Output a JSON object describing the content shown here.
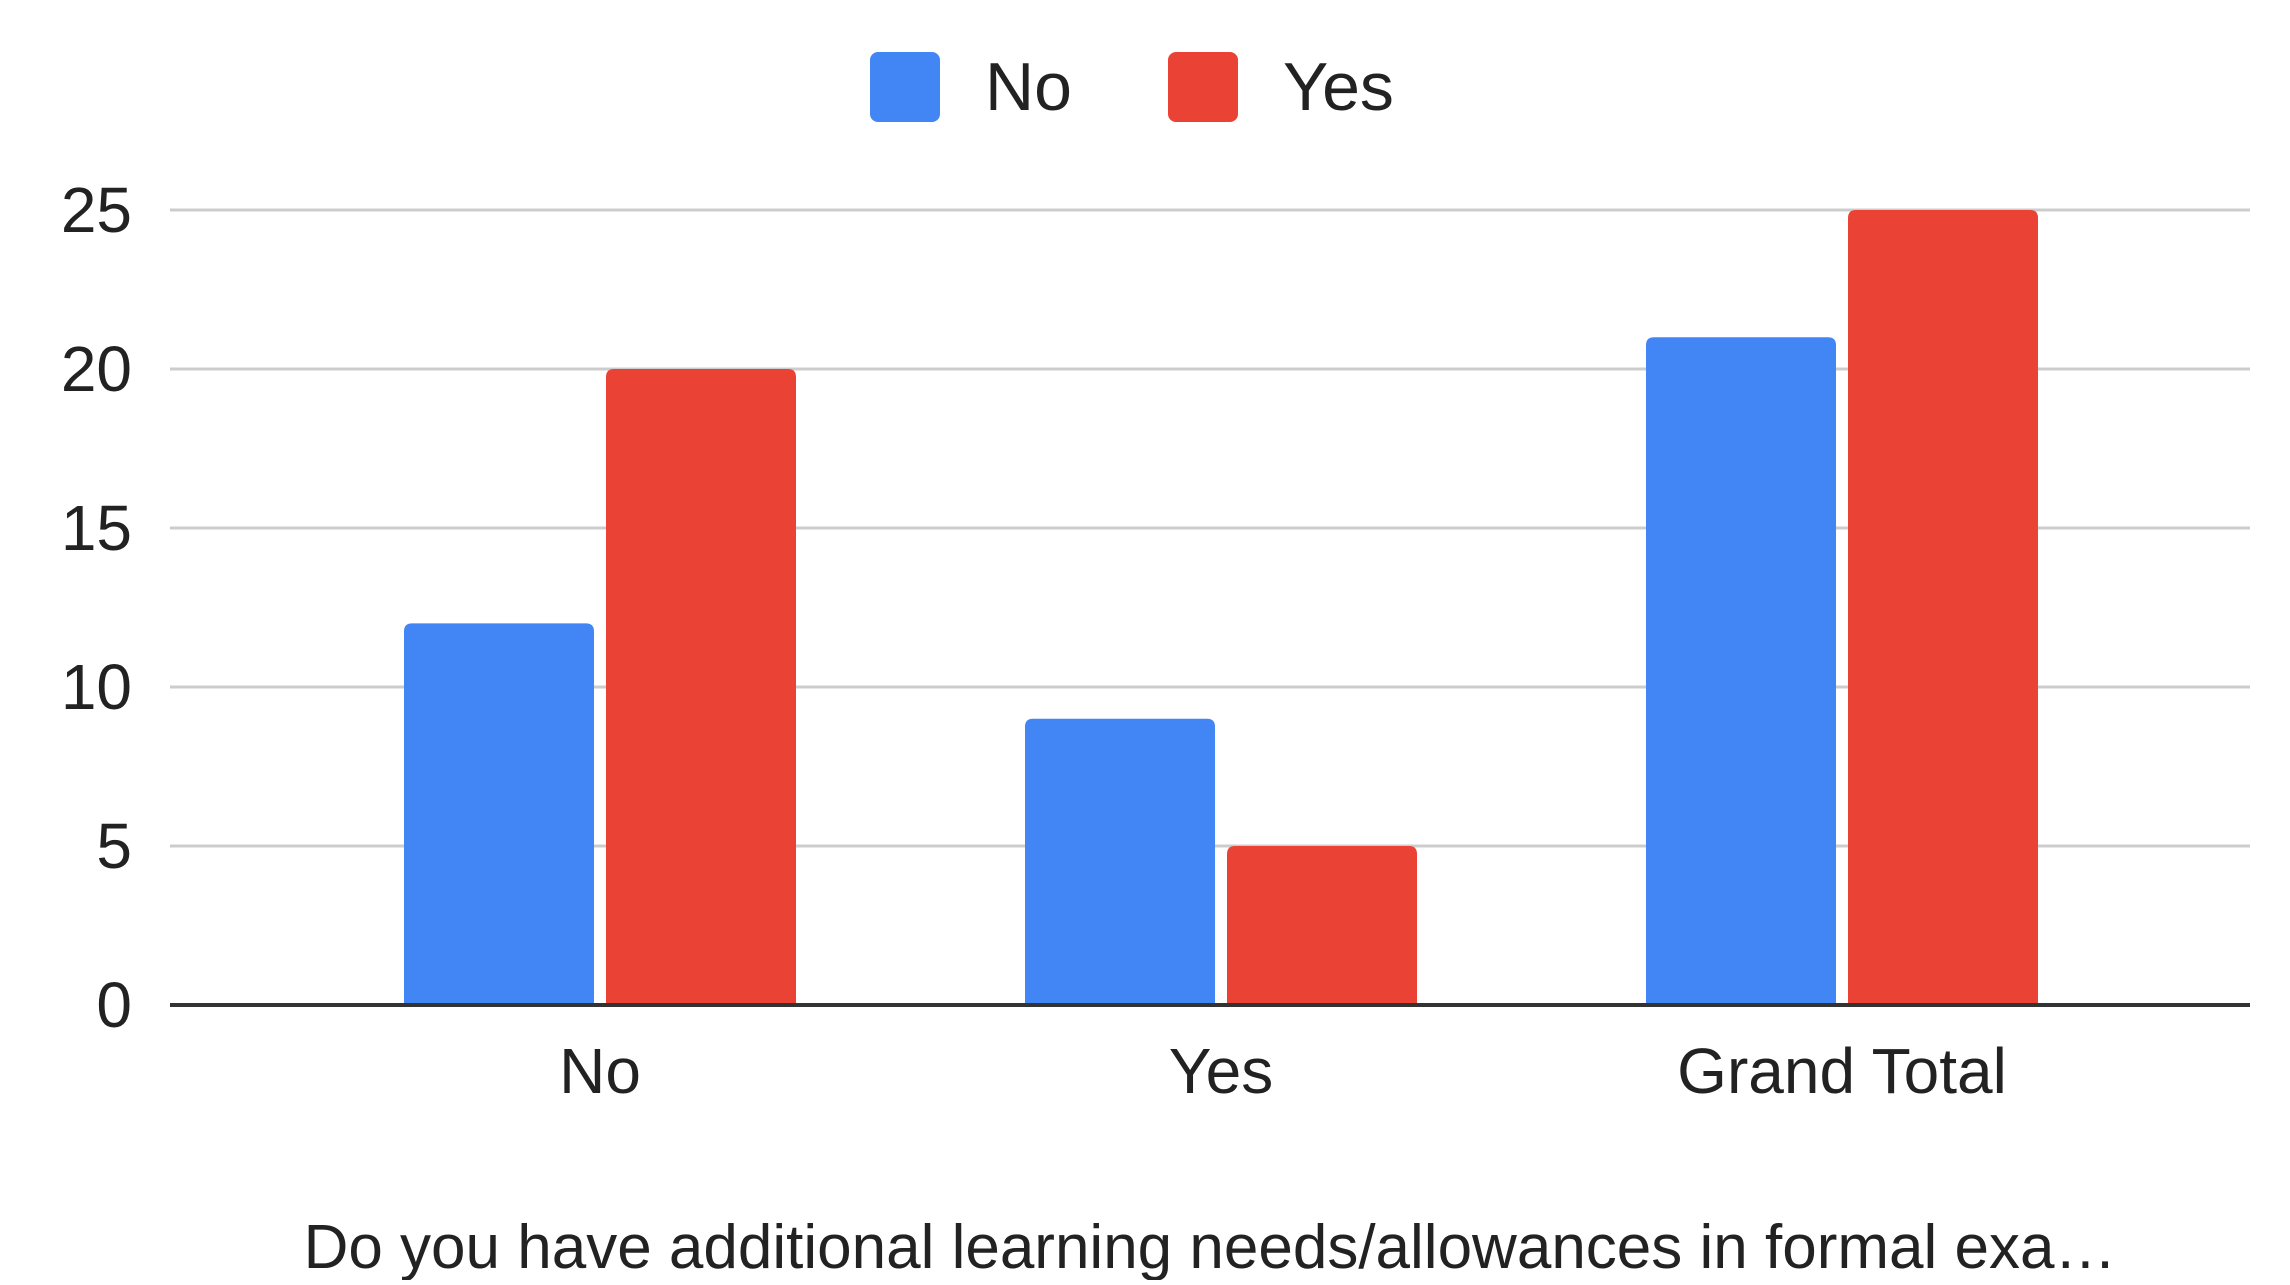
{
  "chart_data": {
    "type": "bar",
    "categories": [
      "No",
      "Yes",
      "Grand Total"
    ],
    "series": [
      {
        "name": "No",
        "values": [
          12,
          9,
          21
        ],
        "color": "#4285F4"
      },
      {
        "name": "Yes",
        "values": [
          20,
          5,
          25
        ],
        "color": "#EA4335"
      }
    ],
    "xlabel": "Do you have additional learning needs/allowances in formal exa…",
    "ylabel": "",
    "ylim": [
      0,
      25
    ],
    "yticks": [
      0,
      5,
      10,
      15,
      20,
      25
    ],
    "grid": true,
    "legend_position": "top-center"
  }
}
